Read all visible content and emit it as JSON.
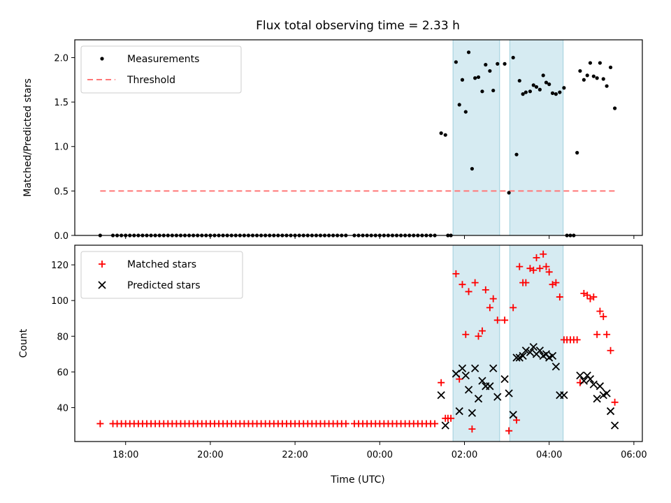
{
  "chart_data": {
    "title": "Flux total observing time = 2.33 h",
    "xlabel": "Time (UTC)",
    "x_units": "hours since 00:00 UTC (negative = previous day)",
    "x_range": [
      -7.2,
      6.2
    ],
    "x_ticks": [
      -6,
      -4,
      -2,
      0,
      2,
      4,
      6
    ],
    "x_tick_labels": [
      "18:00",
      "20:00",
      "22:00",
      "00:00",
      "02:00",
      "04:00",
      "06:00"
    ],
    "shaded_intervals": [
      [
        1.73,
        2.83
      ],
      [
        3.07,
        4.33
      ]
    ],
    "panels": [
      {
        "type": "scatter",
        "ylabel": "Matched/Predicted stars",
        "ylim": [
          0,
          2.2
        ],
        "yticks": [
          0.0,
          0.5,
          1.0,
          1.5,
          2.0
        ],
        "ytick_labels": [
          "0.0",
          "0.5",
          "1.0",
          "1.5",
          "2.0"
        ],
        "legend": {
          "position": "upper left",
          "entries": [
            "Measurements",
            "Threshold"
          ]
        },
        "threshold": {
          "name": "Threshold",
          "value": 0.5,
          "x_range": [
            -6.6,
            5.6
          ],
          "color": "#ff7777"
        },
        "series": [
          {
            "name": "Measurements",
            "marker": "dot",
            "color": "#000000",
            "x": [
              -6.6,
              -6.3,
              -6.2,
              -6.1,
              -6.0,
              -5.9,
              -5.8,
              -5.7,
              -5.6,
              -5.5,
              -5.4,
              -5.3,
              -5.2,
              -5.1,
              -5.0,
              -4.9,
              -4.8,
              -4.7,
              -4.6,
              -4.5,
              -4.4,
              -4.3,
              -4.2,
              -4.1,
              -4.0,
              -3.9,
              -3.8,
              -3.7,
              -3.6,
              -3.5,
              -3.4,
              -3.3,
              -3.2,
              -3.1,
              -3.0,
              -2.9,
              -2.8,
              -2.7,
              -2.6,
              -2.5,
              -2.4,
              -2.3,
              -2.2,
              -2.1,
              -2.0,
              -1.9,
              -1.8,
              -1.7,
              -1.6,
              -1.5,
              -1.4,
              -1.3,
              -1.2,
              -1.1,
              -1.0,
              -0.9,
              -0.8,
              -0.6,
              -0.5,
              -0.4,
              -0.3,
              -0.2,
              -0.1,
              0.0,
              0.1,
              0.2,
              0.3,
              0.4,
              0.5,
              0.6,
              0.7,
              0.8,
              0.9,
              1.0,
              1.1,
              1.2,
              1.3,
              1.45,
              1.55,
              1.61,
              1.68,
              1.8,
              1.88,
              1.95,
              2.03,
              2.1,
              2.18,
              2.25,
              2.33,
              2.42,
              2.5,
              2.6,
              2.68,
              2.78,
              2.95,
              3.05,
              3.15,
              3.23,
              3.3,
              3.38,
              3.45,
              3.55,
              3.63,
              3.7,
              3.78,
              3.86,
              3.93,
              4.0,
              4.08,
              4.16,
              4.25,
              4.35,
              4.42,
              4.5,
              4.58,
              4.66,
              4.73,
              4.82,
              4.9,
              4.97,
              5.05,
              5.13,
              5.2,
              5.28,
              5.36,
              5.45,
              5.55
            ],
            "y": [
              0.0,
              0.0,
              0.0,
              0.0,
              0.0,
              0.0,
              0.0,
              0.0,
              0.0,
              0.0,
              0.0,
              0.0,
              0.0,
              0.0,
              0.0,
              0.0,
              0.0,
              0.0,
              0.0,
              0.0,
              0.0,
              0.0,
              0.0,
              0.0,
              0.0,
              0.0,
              0.0,
              0.0,
              0.0,
              0.0,
              0.0,
              0.0,
              0.0,
              0.0,
              0.0,
              0.0,
              0.0,
              0.0,
              0.0,
              0.0,
              0.0,
              0.0,
              0.0,
              0.0,
              0.0,
              0.0,
              0.0,
              0.0,
              0.0,
              0.0,
              0.0,
              0.0,
              0.0,
              0.0,
              0.0,
              0.0,
              0.0,
              0.0,
              0.0,
              0.0,
              0.0,
              0.0,
              0.0,
              0.0,
              0.0,
              0.0,
              0.0,
              0.0,
              0.0,
              0.0,
              0.0,
              0.0,
              0.0,
              0.0,
              0.0,
              0.0,
              0.0,
              1.15,
              1.13,
              0.0,
              0.0,
              1.95,
              1.47,
              1.75,
              1.39,
              2.06,
              0.75,
              1.77,
              1.78,
              1.62,
              1.92,
              1.85,
              1.63,
              1.93,
              1.93,
              0.48,
              2.0,
              0.91,
              1.74,
              1.59,
              1.61,
              1.62,
              1.69,
              1.67,
              1.64,
              1.8,
              1.72,
              1.7,
              1.6,
              1.59,
              1.61,
              1.66,
              0.0,
              0.0,
              0.0,
              0.93,
              1.85,
              1.75,
              1.8,
              1.94,
              1.79,
              1.77,
              1.94,
              1.76,
              1.68,
              1.89,
              1.43
            ]
          }
        ]
      },
      {
        "type": "scatter",
        "ylabel": "Count",
        "ylim": [
          21,
          131
        ],
        "yticks": [
          40,
          60,
          80,
          100,
          120
        ],
        "ytick_labels": [
          "40",
          "60",
          "80",
          "100",
          "120"
        ],
        "legend": {
          "position": "upper left",
          "entries": [
            "Matched stars",
            "Predicted stars"
          ]
        },
        "series": [
          {
            "name": "Matched stars",
            "marker": "plus",
            "color": "#ff0000",
            "x": [
              -6.6,
              -6.3,
              -6.2,
              -6.1,
              -6.0,
              -5.9,
              -5.8,
              -5.7,
              -5.6,
              -5.5,
              -5.4,
              -5.3,
              -5.2,
              -5.1,
              -5.0,
              -4.9,
              -4.8,
              -4.7,
              -4.6,
              -4.5,
              -4.4,
              -4.3,
              -4.2,
              -4.1,
              -4.0,
              -3.9,
              -3.8,
              -3.7,
              -3.6,
              -3.5,
              -3.4,
              -3.3,
              -3.2,
              -3.1,
              -3.0,
              -2.9,
              -2.8,
              -2.7,
              -2.6,
              -2.5,
              -2.4,
              -2.3,
              -2.2,
              -2.1,
              -2.0,
              -1.9,
              -1.8,
              -1.7,
              -1.6,
              -1.5,
              -1.4,
              -1.3,
              -1.2,
              -1.1,
              -1.0,
              -0.9,
              -0.8,
              -0.6,
              -0.5,
              -0.4,
              -0.3,
              -0.2,
              -0.1,
              0.0,
              0.1,
              0.2,
              0.3,
              0.4,
              0.5,
              0.6,
              0.7,
              0.8,
              0.9,
              1.0,
              1.1,
              1.2,
              1.3,
              1.45,
              1.55,
              1.61,
              1.68,
              1.8,
              1.88,
              1.95,
              2.03,
              2.1,
              2.18,
              2.25,
              2.33,
              2.42,
              2.5,
              2.6,
              2.68,
              2.78,
              2.95,
              3.05,
              3.15,
              3.23,
              3.3,
              3.38,
              3.45,
              3.55,
              3.63,
              3.7,
              3.78,
              3.86,
              3.93,
              4.0,
              4.08,
              4.16,
              4.25,
              4.35,
              4.42,
              4.5,
              4.58,
              4.66,
              4.73,
              4.82,
              4.9,
              4.97,
              5.05,
              5.13,
              5.2,
              5.28,
              5.36,
              5.45,
              5.55
            ],
            "y": [
              31,
              31,
              31,
              31,
              31,
              31,
              31,
              31,
              31,
              31,
              31,
              31,
              31,
              31,
              31,
              31,
              31,
              31,
              31,
              31,
              31,
              31,
              31,
              31,
              31,
              31,
              31,
              31,
              31,
              31,
              31,
              31,
              31,
              31,
              31,
              31,
              31,
              31,
              31,
              31,
              31,
              31,
              31,
              31,
              31,
              31,
              31,
              31,
              31,
              31,
              31,
              31,
              31,
              31,
              31,
              31,
              31,
              31,
              31,
              31,
              31,
              31,
              31,
              31,
              31,
              31,
              31,
              31,
              31,
              31,
              31,
              31,
              31,
              31,
              31,
              31,
              31,
              54,
              34,
              34,
              34,
              115,
              56,
              109,
              81,
              105,
              28,
              110,
              80,
              83,
              106,
              96,
              101,
              89,
              89,
              27,
              96,
              33,
              119,
              110,
              110,
              118,
              117,
              124,
              118,
              126,
              119,
              116,
              109,
              110,
              102,
              78,
              78,
              78,
              78,
              78,
              54,
              104,
              103,
              101,
              102,
              81,
              94,
              91,
              81,
              72,
              43
            ]
          },
          {
            "name": "Predicted stars",
            "marker": "x",
            "color": "#000000",
            "x": [
              1.45,
              1.55,
              1.8,
              1.88,
              1.95,
              2.03,
              2.1,
              2.18,
              2.25,
              2.33,
              2.42,
              2.5,
              2.6,
              2.68,
              2.78,
              2.95,
              3.05,
              3.15,
              3.23,
              3.3,
              3.38,
              3.45,
              3.55,
              3.63,
              3.7,
              3.78,
              3.86,
              3.93,
              4.0,
              4.08,
              4.16,
              4.25,
              4.35,
              4.73,
              4.82,
              4.9,
              4.97,
              5.05,
              5.13,
              5.2,
              5.28,
              5.36,
              5.45,
              5.55
            ],
            "y": [
              47,
              30,
              59,
              38,
              62,
              58,
              50,
              37,
              62,
              45,
              55,
              52,
              52,
              62,
              46,
              56,
              48,
              36,
              68,
              68,
              69,
              72,
              71,
              74,
              70,
              72,
              69,
              70,
              68,
              69,
              63,
              47,
              47,
              58,
              55,
              58,
              56,
              53,
              45,
              52,
              47,
              48,
              38,
              30
            ]
          }
        ]
      }
    ]
  }
}
